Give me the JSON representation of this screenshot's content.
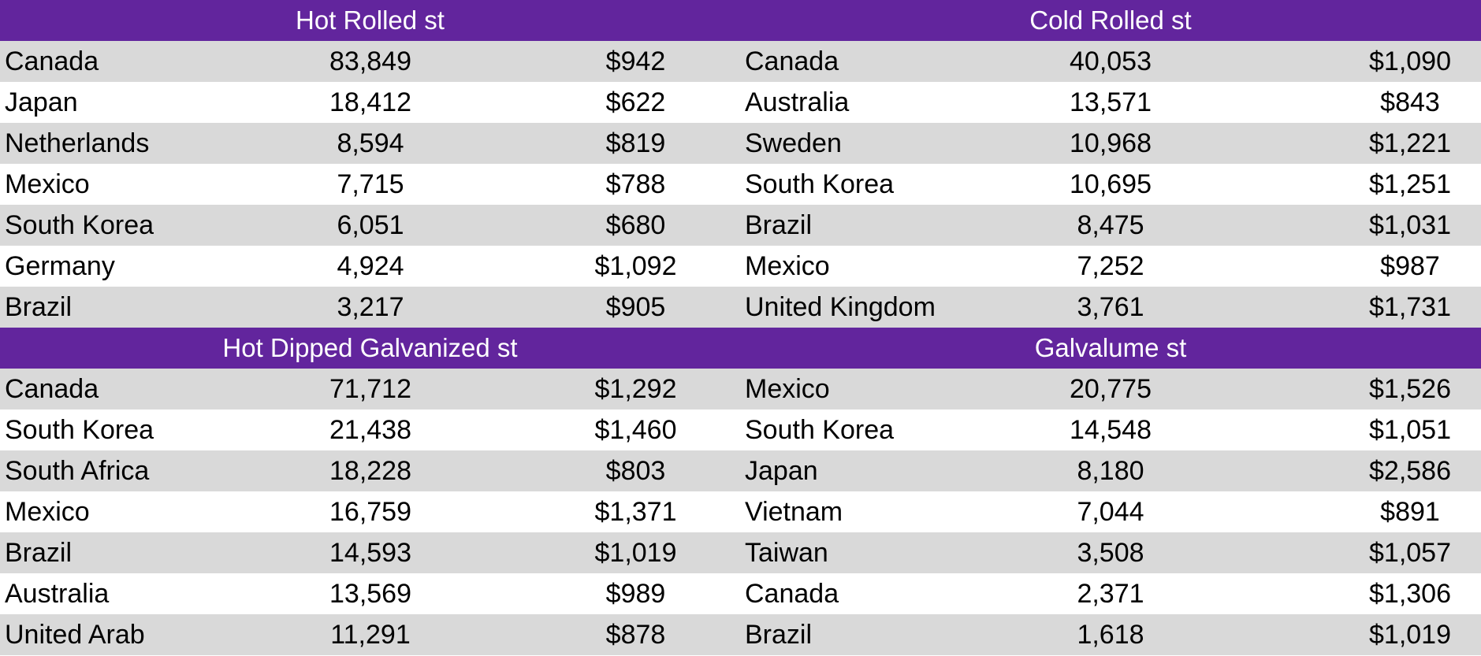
{
  "panels": [
    {
      "title": "Hot Rolled  st",
      "rows": [
        {
          "country": "Canada",
          "tons": "83,849",
          "price": "$942"
        },
        {
          "country": "Japan",
          "tons": "18,412",
          "price": "$622"
        },
        {
          "country": "Netherlands",
          "tons": "8,594",
          "price": "$819"
        },
        {
          "country": "Mexico",
          "tons": "7,715",
          "price": "$788"
        },
        {
          "country": "South Korea",
          "tons": "6,051",
          "price": "$680"
        },
        {
          "country": "Germany",
          "tons": "4,924",
          "price": "$1,092"
        },
        {
          "country": "Brazil",
          "tons": "3,217",
          "price": "$905"
        }
      ]
    },
    {
      "title": "Cold Rolled st",
      "rows": [
        {
          "country": "Canada",
          "tons": "40,053",
          "price": "$1,090"
        },
        {
          "country": "Australia",
          "tons": "13,571",
          "price": "$843"
        },
        {
          "country": "Sweden",
          "tons": "10,968",
          "price": "$1,221"
        },
        {
          "country": "South Korea",
          "tons": "10,695",
          "price": "$1,251"
        },
        {
          "country": "Brazil",
          "tons": "8,475",
          "price": "$1,031"
        },
        {
          "country": "Mexico",
          "tons": "7,252",
          "price": "$987"
        },
        {
          "country": "United Kingdom",
          "tons": "3,761",
          "price": "$1,731"
        }
      ]
    },
    {
      "title": "Hot Dipped Galvanized st",
      "rows": [
        {
          "country": "Canada",
          "tons": "71,712",
          "price": "$1,292"
        },
        {
          "country": "South Korea",
          "tons": "21,438",
          "price": "$1,460"
        },
        {
          "country": "South Africa",
          "tons": "18,228",
          "price": "$803"
        },
        {
          "country": "Mexico",
          "tons": "16,759",
          "price": "$1,371"
        },
        {
          "country": "Brazil",
          "tons": "14,593",
          "price": "$1,019"
        },
        {
          "country": "Australia",
          "tons": "13,569",
          "price": "$989"
        },
        {
          "country": "United Arab",
          "tons": "11,291",
          "price": "$878"
        }
      ]
    },
    {
      "title": "Galvalume st",
      "rows": [
        {
          "country": "Mexico",
          "tons": "20,775",
          "price": "$1,526"
        },
        {
          "country": "South Korea",
          "tons": "14,548",
          "price": "$1,051"
        },
        {
          "country": "Japan",
          "tons": "8,180",
          "price": "$2,586"
        },
        {
          "country": "Vietnam",
          "tons": "7,044",
          "price": "$891"
        },
        {
          "country": "Taiwan",
          "tons": "3,508",
          "price": "$1,057"
        },
        {
          "country": "Canada",
          "tons": "2,371",
          "price": "$1,306"
        },
        {
          "country": "Brazil",
          "tons": "1,618",
          "price": "$1,019"
        }
      ]
    }
  ],
  "colors": {
    "header_bg": "#62259d",
    "shade_row": "#d9d9d9",
    "plain_row": "#ffffff"
  }
}
